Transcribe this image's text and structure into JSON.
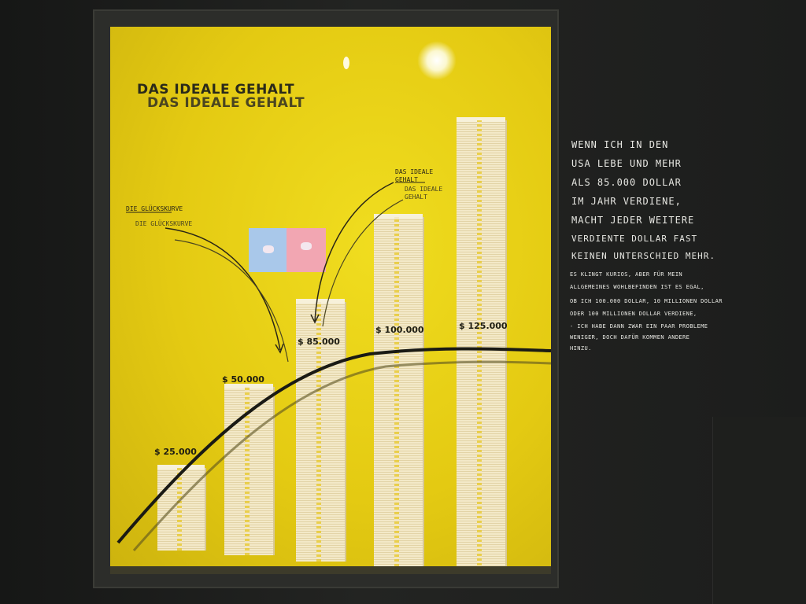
{
  "exhibit": {
    "title_primary": "DAS IDEALE GEHALT",
    "title_shadow": "DAS IDEALE GEHALT",
    "annotation_curve": "DIE GLÜCKSKURVE",
    "annotation_curve_shadow": "DIE GLÜCKSKURVE",
    "annotation_ideal_line1": "DAS IDEALE",
    "annotation_ideal_line2": "GEHALT",
    "annotation_ideal_shadow_line1": "DAS IDEALE",
    "annotation_ideal_shadow_line2": "GEHALT"
  },
  "stacks": [
    {
      "label": "$ 25.000",
      "value": 25000
    },
    {
      "label": "$ 50.000",
      "value": 50000
    },
    {
      "label": "$ 85.000",
      "value": 85000
    },
    {
      "label": "$ 100.000",
      "value": 100000
    },
    {
      "label": "$ 125.000",
      "value": 125000
    }
  ],
  "chalkboard": {
    "lines_big": [
      "WENN ICH IN DEN",
      "USA LEBE UND MEHR",
      "ALS 85.000 DOLLAR",
      "IM JAHR VERDIENE,",
      "MACHT JEDER WEITERE",
      "VERDIENTE DOLLAR FAST",
      "KEINEN UNTERSCHIED MEHR."
    ],
    "lines_small": [
      "ES KLINGT KURIOS, ABER FÜR MEIN",
      "ALLGEMEINES WOHLBEFINDEN IST ES EGAL,",
      "OB ICH 100.000 DOLLAR, 10 MILLIONEN DOLLAR",
      "ODER 100 MILLIONEN DOLLAR VERDIENE,",
      "- ICH HABE DANN ZWAR EIN PAAR PROBLEME",
      "WENIGER, DOCH DAFÜR KOMMEN ANDERE",
      "HINZU."
    ]
  },
  "colors": {
    "panel": "#e9d318",
    "wall": "#1f201e",
    "chalk": "#e7e7e2",
    "money": "#f3e9c8"
  }
}
